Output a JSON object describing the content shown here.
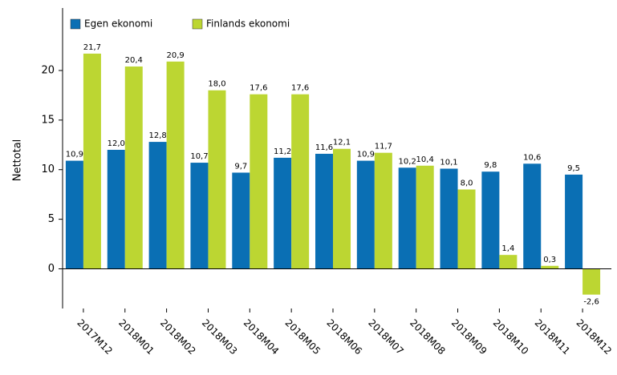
{
  "chart_data": {
    "type": "bar",
    "ylabel": "Nettotal",
    "categories": [
      "2017M12",
      "2018M01",
      "2018M02",
      "2018M03",
      "2018M04",
      "2018M05",
      "2018M06",
      "2018M07",
      "2018M08",
      "2018M09",
      "2018M10",
      "2018M11",
      "2018M12"
    ],
    "series": [
      {
        "name": "Egen ekonomi",
        "color": "#0a6fb4",
        "values": [
          10.9,
          12.0,
          12.8,
          10.7,
          9.7,
          11.2,
          11.6,
          10.9,
          10.2,
          10.1,
          9.8,
          10.6,
          9.5
        ],
        "value_labels": [
          "10,9",
          "12,0",
          "12,8",
          "10,7",
          "9,7",
          "11,2",
          "11,6",
          "10,9",
          "10,2",
          "10,1",
          "9,8",
          "10,6",
          "9,5"
        ]
      },
      {
        "name": "Finlands ekonomi",
        "color": "#bcd632",
        "values": [
          21.7,
          20.4,
          20.9,
          18.0,
          17.6,
          17.6,
          12.1,
          11.7,
          10.4,
          8.0,
          1.4,
          0.3,
          -2.6
        ],
        "value_labels": [
          "21,7",
          "20,4",
          "20,9",
          "18,0",
          "17,6",
          "17,6",
          "12,1",
          "11,7",
          "10,4",
          "8,0",
          "1,4",
          "0,3",
          "-2,6"
        ]
      }
    ],
    "ylim": [
      -4,
      26.3
    ],
    "yticks": [
      0,
      5,
      10,
      15,
      20
    ],
    "legend": "top-left"
  }
}
